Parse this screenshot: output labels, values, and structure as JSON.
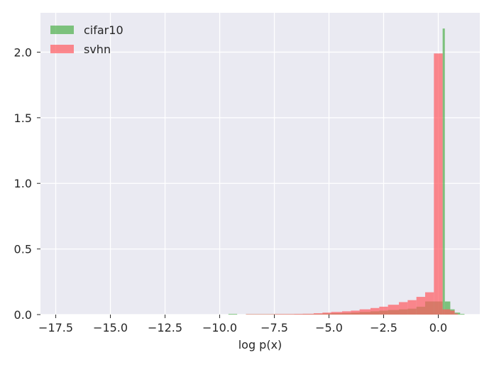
{
  "chart_data": {
    "type": "bar",
    "subtype": "overlaid-histogram",
    "title": "",
    "xlabel": "log p(x)",
    "ylabel": "",
    "xlim": [
      -18.2,
      1.9
    ],
    "ylim": [
      0,
      2.3
    ],
    "xticks": [
      -17.5,
      -15.0,
      -12.5,
      -10.0,
      -7.5,
      -5.0,
      -2.5,
      0.0
    ],
    "xtick_labels": [
      "−17.5",
      "−15.0",
      "−12.5",
      "−10.0",
      "−7.5",
      "−5.0",
      "−2.5",
      "0.0"
    ],
    "yticks": [
      0.0,
      0.5,
      1.0,
      1.5,
      2.0
    ],
    "ytick_labels": [
      "0.0",
      "0.5",
      "1.0",
      "1.5",
      "2.0"
    ],
    "grid": true,
    "legend_position": "top-left",
    "background_color": "#eaeaf2",
    "series": [
      {
        "name": "cifar10",
        "color": "#4daf4a",
        "opacity": 0.7,
        "bins": [
          [
            -9.6,
            -9.2,
            0.005
          ],
          [
            -8.8,
            -8.4,
            0.003
          ],
          [
            -8.4,
            -7.9,
            0.003
          ],
          [
            -7.9,
            -7.5,
            0.003
          ],
          [
            -7.5,
            -7.0,
            0.003
          ],
          [
            -7.0,
            -6.6,
            0.003
          ],
          [
            -6.6,
            -6.2,
            0.003
          ],
          [
            -6.2,
            -5.7,
            0.004
          ],
          [
            -5.7,
            -5.3,
            0.005
          ],
          [
            -5.3,
            -4.9,
            0.008
          ],
          [
            -4.9,
            -4.4,
            0.01
          ],
          [
            -4.4,
            -4.0,
            0.012
          ],
          [
            -4.0,
            -3.6,
            0.015
          ],
          [
            -3.6,
            -3.1,
            0.02
          ],
          [
            -3.1,
            -2.7,
            0.025
          ],
          [
            -2.7,
            -2.3,
            0.03
          ],
          [
            -2.3,
            -1.8,
            0.035
          ],
          [
            -1.8,
            -1.4,
            0.04
          ],
          [
            -1.4,
            -1.0,
            0.045
          ],
          [
            -1.0,
            -0.6,
            0.06
          ],
          [
            -0.6,
            -0.2,
            0.1
          ],
          [
            -0.2,
            0.2,
            0.1
          ],
          [
            0.2,
            0.3,
            2.18
          ],
          [
            0.3,
            0.55,
            0.1
          ],
          [
            0.55,
            0.75,
            0.04
          ],
          [
            0.75,
            1.0,
            0.015
          ],
          [
            1.0,
            1.2,
            0.005
          ]
        ]
      },
      {
        "name": "svhn",
        "color": "#ff5a5f",
        "opacity": 0.7,
        "bins": [
          [
            -8.8,
            -8.4,
            0.003
          ],
          [
            -8.4,
            -7.9,
            0.003
          ],
          [
            -7.9,
            -7.5,
            0.003
          ],
          [
            -7.5,
            -7.0,
            0.004
          ],
          [
            -7.0,
            -6.6,
            0.004
          ],
          [
            -6.6,
            -6.2,
            0.005
          ],
          [
            -6.2,
            -5.7,
            0.006
          ],
          [
            -5.7,
            -5.3,
            0.01
          ],
          [
            -5.3,
            -4.9,
            0.015
          ],
          [
            -4.9,
            -4.4,
            0.02
          ],
          [
            -4.4,
            -4.0,
            0.025
          ],
          [
            -4.0,
            -3.6,
            0.03
          ],
          [
            -3.6,
            -3.1,
            0.04
          ],
          [
            -3.1,
            -2.7,
            0.05
          ],
          [
            -2.7,
            -2.3,
            0.06
          ],
          [
            -2.3,
            -1.8,
            0.075
          ],
          [
            -1.8,
            -1.4,
            0.095
          ],
          [
            -1.4,
            -1.0,
            0.11
          ],
          [
            -1.0,
            -0.6,
            0.135
          ],
          [
            -0.6,
            -0.2,
            0.17
          ],
          [
            -0.2,
            0.2,
            1.99
          ],
          [
            0.2,
            0.55,
            0.04
          ],
          [
            0.55,
            0.75,
            0.03
          ],
          [
            0.75,
            0.9,
            0.008
          ]
        ]
      }
    ]
  }
}
